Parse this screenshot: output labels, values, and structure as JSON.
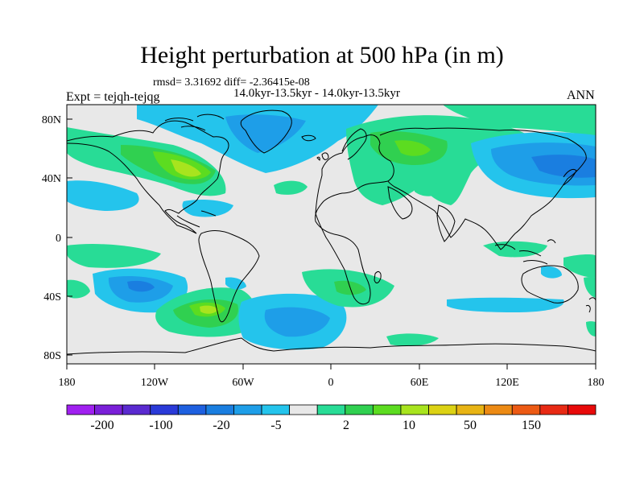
{
  "title": "Height perturbation at 500 hPa (in m)",
  "stats_line": "rmsd= 3.31692 diff= -2.36415e-08",
  "period_line": "14.0kyr-13.5kyr - 14.0kyr-13.5kyr",
  "experiment_label": "Expt = tejqh-tejqg",
  "season": "ANN",
  "lat_labels": [
    "80N",
    "40N",
    "0",
    "40S",
    "80S"
  ],
  "lon_labels": [
    "180",
    "120W",
    "60W",
    "0",
    "60E",
    "120E",
    "180"
  ],
  "colorbar": {
    "labels": [
      "-200",
      "-100",
      "-20",
      "-5",
      "2",
      "10",
      "50",
      "150"
    ],
    "colors": [
      "#a020f0",
      "#7a1fd8",
      "#5a2ad0",
      "#2a3ad8",
      "#1e60e0",
      "#1a7ee0",
      "#1e9ee8",
      "#24c4ec",
      "#e8e8e8",
      "#28dc96",
      "#30d050",
      "#5cdc20",
      "#a8e41e",
      "#dcd214",
      "#e8b414",
      "#ec8a14",
      "#ec5a14",
      "#e82a14",
      "#e80a0a"
    ]
  },
  "map_colors": {
    "neutral": "#e8e8e8",
    "lightblue": "#24c4ec",
    "blue": "#1e9ee8",
    "darkblue": "#1a7ee0",
    "teal": "#28dc96",
    "green": "#30d050",
    "lime": "#5cdc20",
    "yellowgreen": "#a8e41e",
    "coast": "#000000"
  }
}
